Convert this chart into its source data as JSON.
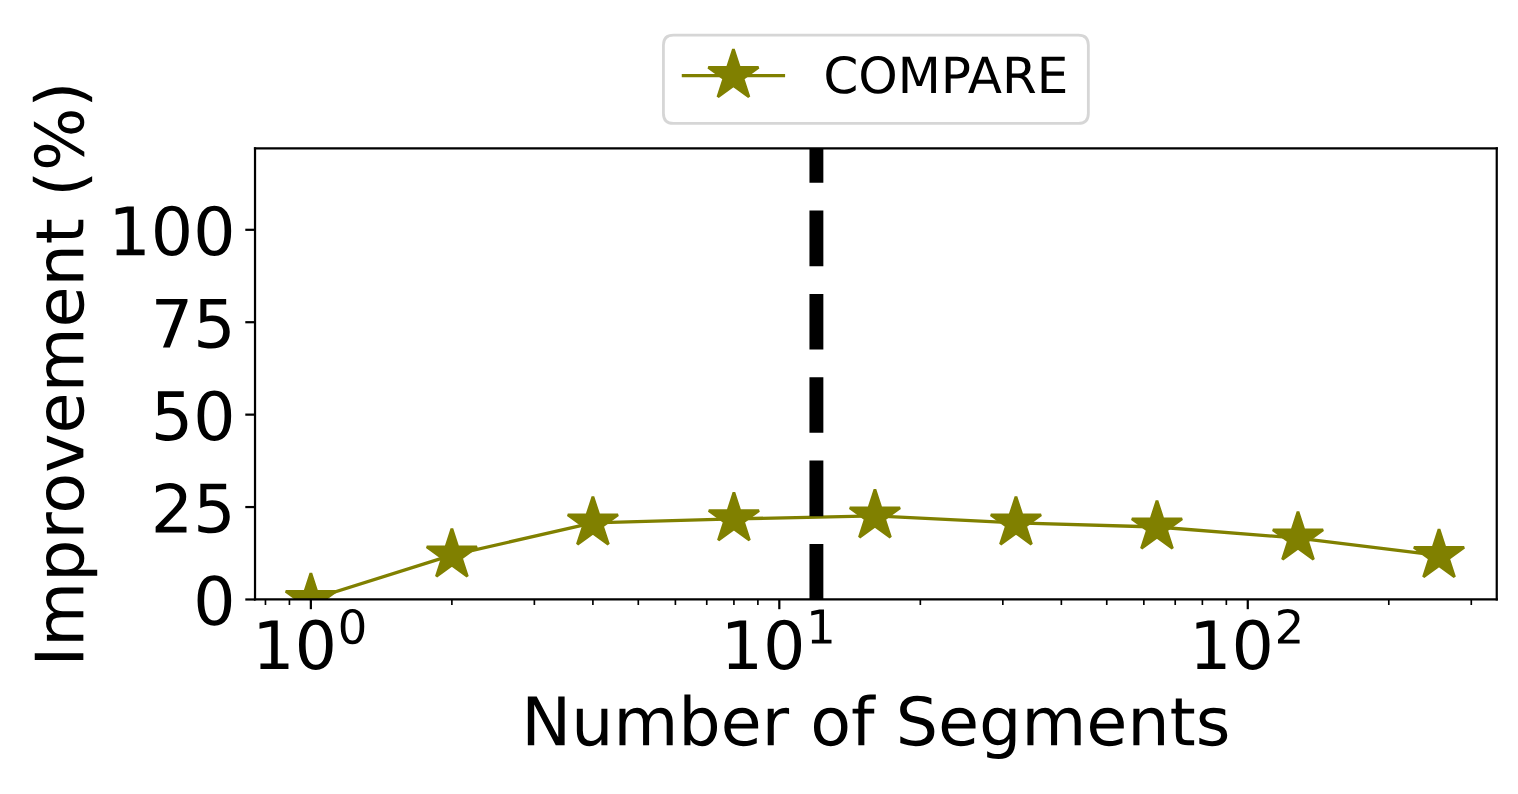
{
  "chart_data": {
    "type": "line",
    "xlabel": "Number of Segments",
    "ylabel": "Improvement (%)",
    "x": [
      1,
      2,
      4,
      8,
      16,
      32,
      64,
      128,
      256
    ],
    "series": [
      {
        "name": "COMPARE",
        "color": "#808000",
        "values": [
          0,
          12,
          20.7,
          21.8,
          22.6,
          20.7,
          19.6,
          16.6,
          11.9
        ]
      }
    ],
    "log": "x",
    "xlim": [
      0.76,
      340
    ],
    "xticks": [
      {
        "value": 1,
        "label": "10$^{0}$"
      },
      {
        "value": 10,
        "label": "10$^{1}$"
      },
      {
        "value": 100,
        "label": "10$^{2}$"
      }
    ],
    "ylim": [
      0,
      122
    ],
    "yticks": [
      0,
      25,
      50,
      75,
      100
    ],
    "ref_lines": [
      {
        "axis": "x",
        "value": 12,
        "color": "#000000",
        "line_style": "dashed"
      }
    ],
    "marker": "star",
    "line_style": "solid",
    "legend": "top",
    "grid": false
  }
}
